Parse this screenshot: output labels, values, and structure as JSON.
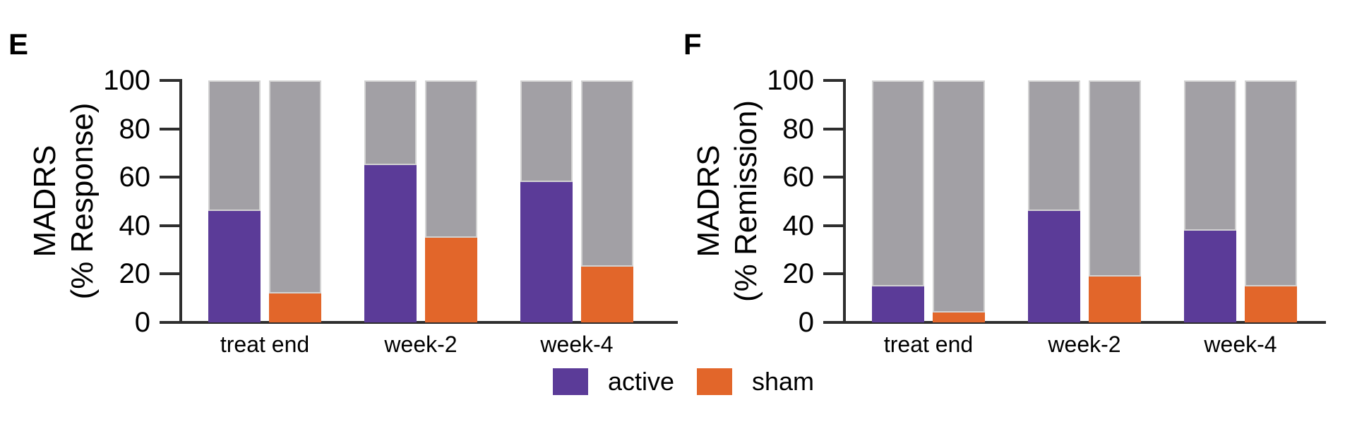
{
  "figure": {
    "background": "#ffffff",
    "text_color": "#000000",
    "axis_color": "#2e2e2e"
  },
  "colors": {
    "active": "#5b3b98",
    "sham": "#e2662a",
    "remainder_gray": "#a2a0a5"
  },
  "chart_data": [
    {
      "type": "bar",
      "subtype": "stacked-percentage",
      "panel_label": "E",
      "title": "MADRS (% Response)",
      "ylabel": "MADRS (% Response)",
      "ylabel_lines": [
        "MADRS",
        "(% Response)"
      ],
      "xlabel": "",
      "categories": [
        "treat end",
        "week-2",
        "week-4"
      ],
      "series": [
        {
          "name": "active",
          "color": "#5b3b98",
          "values": [
            46,
            65,
            58
          ]
        },
        {
          "name": "sham",
          "color": "#e2662a",
          "values": [
            12,
            35,
            23
          ]
        }
      ],
      "remainder_to": 100,
      "remainder_color": "#a2a0a5",
      "ylim": [
        0,
        100
      ],
      "yticks": [
        0,
        20,
        40,
        60,
        80,
        100
      ],
      "grid": false,
      "legend_position": "bottom"
    },
    {
      "type": "bar",
      "subtype": "stacked-percentage",
      "panel_label": "F",
      "title": "MADRS (% Remission)",
      "ylabel": "MADRS (% Remission)",
      "ylabel_lines": [
        "MADRS",
        "(% Remission)"
      ],
      "xlabel": "",
      "categories": [
        "treat end",
        "week-2",
        "week-4"
      ],
      "series": [
        {
          "name": "active",
          "color": "#5b3b98",
          "values": [
            15,
            46,
            38
          ]
        },
        {
          "name": "sham",
          "color": "#e2662a",
          "values": [
            4,
            19,
            15
          ]
        }
      ],
      "remainder_to": 100,
      "remainder_color": "#a2a0a5",
      "ylim": [
        0,
        100
      ],
      "yticks": [
        0,
        20,
        40,
        60,
        80,
        100
      ],
      "grid": false,
      "legend_position": "bottom"
    }
  ],
  "legend": {
    "items": [
      {
        "label": "active",
        "color": "#5b3b98"
      },
      {
        "label": "sham",
        "color": "#e2662a"
      }
    ]
  }
}
